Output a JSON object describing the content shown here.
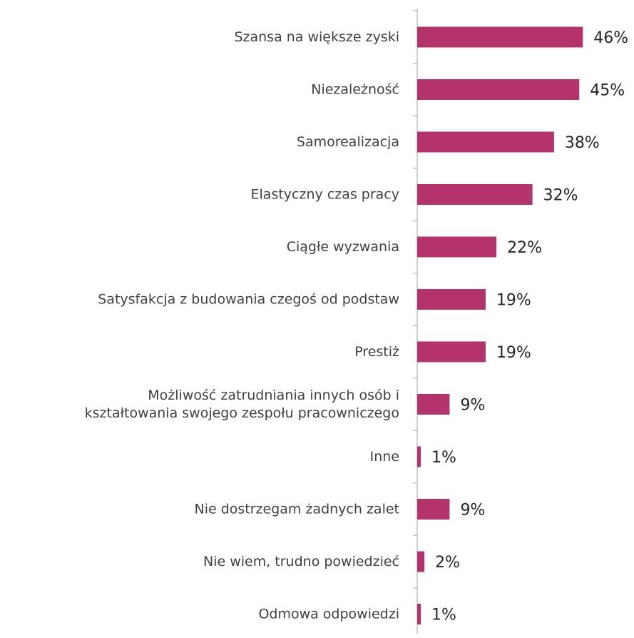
{
  "chart_data": {
    "type": "bar",
    "orientation": "horizontal",
    "title": "",
    "xlabel": "",
    "ylabel": "",
    "xlim": [
      0,
      50
    ],
    "grid": false,
    "legend": "none",
    "bar_color": "#b5336b",
    "axis_color": "#bfbfbf",
    "categories": [
      [
        "Szansa na większe zyski"
      ],
      [
        "Niezależność"
      ],
      [
        "Samorealizacja"
      ],
      [
        "Elastyczny czas pracy"
      ],
      [
        "Ciągłe wyzwania"
      ],
      [
        "Satysfakcja z budowania czegoś od podstaw"
      ],
      [
        "Prestiż"
      ],
      [
        "Możliwość zatrudniania innych osób i",
        "kształtowania swojego zespołu pracowniczego"
      ],
      [
        "Inne"
      ],
      [
        "Nie dostrzegam żadnych zalet"
      ],
      [
        "Nie wiem, trudno powiedzieć"
      ],
      [
        "Odmowa odpowiedzi"
      ]
    ],
    "values": [
      46,
      45,
      38,
      32,
      22,
      19,
      19,
      9,
      1,
      9,
      2,
      1
    ],
    "value_labels": [
      "46%",
      "45%",
      "38%",
      "32%",
      "22%",
      "19%",
      "19%",
      "9%",
      "1%",
      "9%",
      "2%",
      "1%"
    ]
  }
}
